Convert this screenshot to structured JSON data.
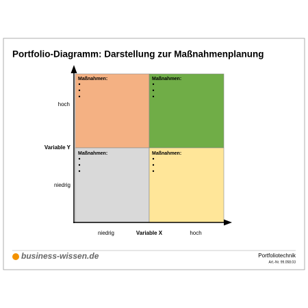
{
  "header": {
    "title": "Portfolio-Diagramm: Darstellung zur Maßnahmenplanung"
  },
  "quadrants": [
    {
      "position": "top-left",
      "label": "Maßnahmen:"
    },
    {
      "position": "top-right",
      "label": "Maßnahmen:"
    },
    {
      "position": "bottom-left",
      "label": "Maßnahmen:"
    },
    {
      "position": "bottom-right",
      "label": "Maßnahmen:"
    }
  ],
  "y_axis": {
    "title": "Variable Y",
    "high": "hoch",
    "low": "niedrig"
  },
  "x_axis": {
    "title": "Variable X",
    "low": "niedrig",
    "high": "hoch"
  },
  "footer": {
    "brand": "business-wissen.de",
    "topic": "Portfoliotechnik",
    "article": "Art.-Nr. 99.058.03"
  }
}
